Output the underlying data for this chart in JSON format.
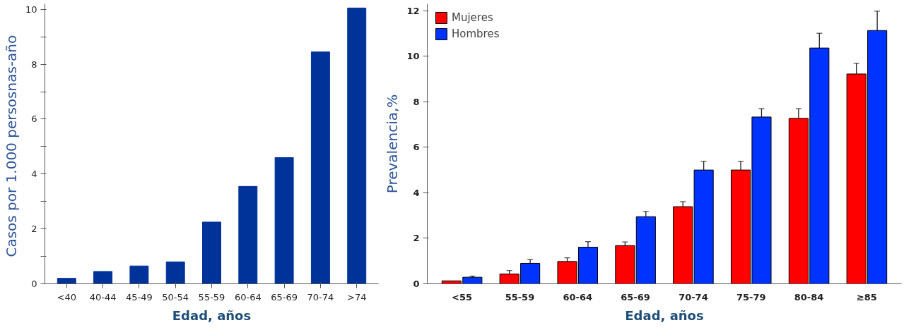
{
  "chart_data": [
    {
      "type": "bar",
      "xlabel": "Edad, años",
      "ylabel": "Casos por  1.000 persosnas-año",
      "categories": [
        "<40",
        "40-44",
        "45-49",
        "50-54",
        "55-59",
        "60-64",
        "65-69",
        "70-74",
        ">74"
      ],
      "values": [
        0.2,
        0.45,
        0.65,
        0.8,
        2.25,
        3.55,
        4.6,
        8.45,
        10.05
      ],
      "color": "#003399",
      "ylim": [
        0,
        10.2
      ],
      "yticks": [
        0,
        {
          "value": 1,
          "label": null
        },
        2,
        {
          "value": 3,
          "label": null
        },
        4,
        {
          "value": 5,
          "label": null
        },
        6,
        {
          "value": 7,
          "label": null
        },
        8,
        {
          "value": 9,
          "label": null
        },
        10
      ],
      "grid": false
    },
    {
      "type": "bar",
      "xlabel": "Edad, años",
      "ylabel": "Prevalencia,%",
      "categories": [
        "<55",
        "55-59",
        "60-64",
        "65-69",
        "70-74",
        "75-79",
        "80-84",
        "≥85"
      ],
      "series": [
        {
          "name": "Mujeres",
          "color": "#ff0000",
          "values": [
            0.13,
            0.43,
            0.98,
            1.68,
            3.39,
            5.0,
            7.27,
            9.22
          ],
          "errors": [
            null,
            0.15,
            0.16,
            0.16,
            0.22,
            0.38,
            0.43,
            0.47
          ]
        },
        {
          "name": "Hombres",
          "color": "#0033ff",
          "values": [
            0.29,
            0.9,
            1.61,
            2.95,
            5.0,
            7.33,
            10.36,
            11.13
          ],
          "errors": [
            0.05,
            0.17,
            0.24,
            0.23,
            0.38,
            0.37,
            0.65,
            0.85
          ]
        }
      ],
      "ylim": [
        0,
        12.3
      ],
      "yticks": [
        0,
        2,
        4,
        6,
        8,
        10,
        12
      ],
      "grid": false,
      "legend": "top left"
    }
  ]
}
